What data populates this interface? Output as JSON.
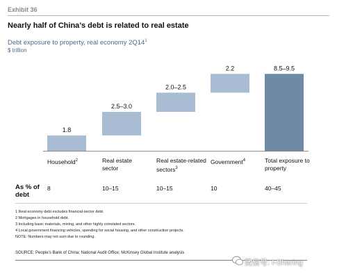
{
  "header": {
    "exhibit": "Exhibit 36",
    "headline": "Nearly half of China’s debt is related to real estate",
    "subtitle": "Debt exposure to property, real economy 2Q14",
    "subtitle_note": "1",
    "unit": "$ trillion"
  },
  "chart_data": {
    "type": "waterfall",
    "title": "Debt exposure to property, real economy 2Q14",
    "unit": "$ trillion",
    "categories": [
      {
        "label": "Household",
        "note": "2"
      },
      {
        "label": "Real estate sector",
        "note": ""
      },
      {
        "label": "Real estate-related sectors",
        "note": "3"
      },
      {
        "label": "Government",
        "note": "4"
      },
      {
        "label": "Total exposure to property",
        "note": ""
      }
    ],
    "value_labels": [
      "1.8",
      "2.5–3.0",
      "2.0–2.5",
      "2.2",
      "8.5–9.5"
    ],
    "steps": [
      {
        "low": 1.8,
        "high": 1.8
      },
      {
        "low": 2.5,
        "high": 3.0
      },
      {
        "low": 2.0,
        "high": 2.5
      },
      {
        "low": 2.2,
        "high": 2.2
      },
      {
        "low": 8.5,
        "high": 9.5
      }
    ],
    "colors": {
      "step": "#a8bdd3",
      "total": "#6f8aa6"
    }
  },
  "pct_row": {
    "label": "As % of debt",
    "values": [
      "8",
      "10–15",
      "10–15",
      "10",
      "40–45"
    ]
  },
  "footnotes": [
    "1  Real economy debt excludes financial-sector debt.",
    "2  Mortgages in household debt.",
    "3  Including basic materials, mining, and other highly correlated sectors.",
    "4  Local government financing vehicles, spending for social housing, and other construction projects.",
    "NOTE: Numbers may not sum due to rounding."
  ],
  "source": "SOURCE: People’s Bank of China; National Audit Office; McKinsey Global Institute analysis",
  "watermark": "微信号: I-Sharing"
}
